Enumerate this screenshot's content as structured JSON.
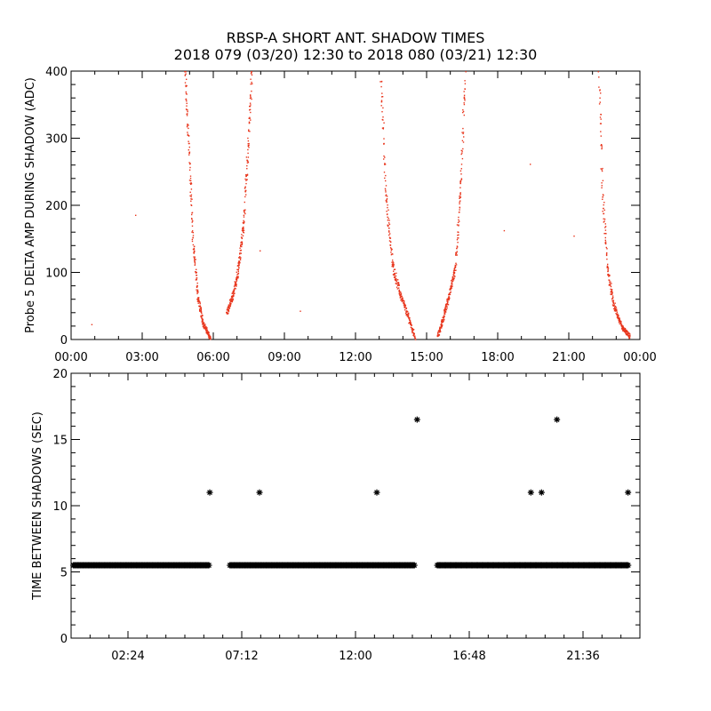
{
  "title_line1": "RBSP-A SHORT ANT. SHADOW TIMES",
  "title_line2": "2018 079 (03/20) 12:30 to 2018 080 (03/21) 12:30",
  "chart_data": [
    {
      "type": "scatter",
      "ylabel": "Probe 5 DELTA AMP DURING SHADOW (ADC)",
      "xlim_hours": [
        0,
        24
      ],
      "ylim": [
        0,
        400
      ],
      "x_ticks": [
        "00:00",
        "03:00",
        "06:00",
        "09:00",
        "12:00",
        "15:00",
        "18:00",
        "21:00",
        "00:00"
      ],
      "y_ticks": [
        0,
        100,
        200,
        300,
        400
      ],
      "color": "#e8351c",
      "bands": [
        {
          "x": [
            4.78,
            4.93,
            5.12,
            5.32,
            5.55,
            5.85
          ],
          "y": [
            400,
            300,
            150,
            65,
            25,
            3
          ]
        },
        {
          "x": [
            6.55,
            6.85,
            7.05,
            7.25,
            7.45,
            7.6
          ],
          "y": [
            40,
            70,
            110,
            170,
            290,
            400
          ]
        },
        {
          "x": [
            13.05,
            13.25,
            13.55,
            13.85,
            14.2,
            14.5
          ],
          "y": [
            400,
            220,
            110,
            70,
            35,
            3
          ]
        },
        {
          "x": [
            15.45,
            15.7,
            15.95,
            16.2,
            16.45,
            16.6
          ],
          "y": [
            5,
            35,
            70,
            110,
            250,
            400
          ]
        },
        {
          "x": [
            22.25,
            22.4,
            22.6,
            22.85,
            23.2,
            23.55
          ],
          "y": [
            400,
            220,
            110,
            55,
            20,
            5
          ]
        }
      ],
      "isolated": [
        {
          "x": 0.85,
          "y": 23
        },
        {
          "x": 2.7,
          "y": 186
        },
        {
          "x": 7.95,
          "y": 133
        },
        {
          "x": 9.65,
          "y": 43
        },
        {
          "x": 18.25,
          "y": 163
        },
        {
          "x": 19.35,
          "y": 262
        },
        {
          "x": 21.2,
          "y": 155
        }
      ]
    },
    {
      "type": "scatter",
      "ylabel": "TIME BETWEEN SHADOWS (SEC)",
      "xlim_hours": [
        0,
        24
      ],
      "ylim": [
        0,
        20
      ],
      "x_ticks": [
        {
          "label": "02:24",
          "h": 2.4
        },
        {
          "label": "07:12",
          "h": 7.2
        },
        {
          "label": "12:00",
          "h": 12.0
        },
        {
          "label": "16:48",
          "h": 16.8
        },
        {
          "label": "21:36",
          "h": 21.6
        }
      ],
      "y_ticks": [
        0,
        5,
        10,
        15,
        20
      ],
      "baseline_value": 5.5,
      "baseline_segments": [
        [
          0.1,
          5.85
        ],
        [
          6.7,
          14.5
        ],
        [
          15.45,
          23.55
        ]
      ],
      "outliers": [
        {
          "x": 5.85,
          "y": 11.0
        },
        {
          "x": 7.95,
          "y": 11.0
        },
        {
          "x": 12.9,
          "y": 11.0
        },
        {
          "x": 14.6,
          "y": 16.5
        },
        {
          "x": 19.4,
          "y": 11.0
        },
        {
          "x": 19.85,
          "y": 11.0
        },
        {
          "x": 20.5,
          "y": 16.5
        },
        {
          "x": 23.5,
          "y": 11.0
        }
      ],
      "marker": "asterisk",
      "color": "#000000"
    }
  ]
}
